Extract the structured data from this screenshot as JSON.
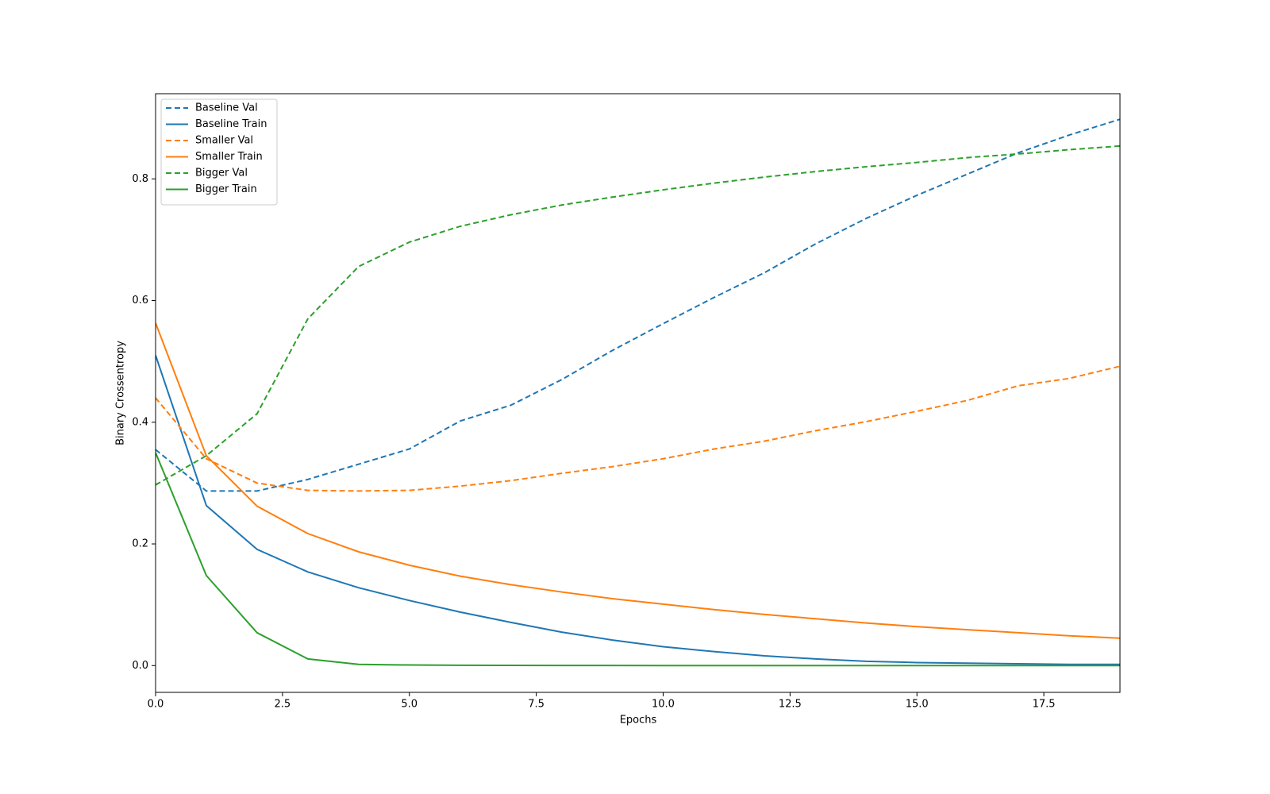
{
  "chart_data": {
    "type": "line",
    "x_label": "Epochs",
    "y_label": "Binary Crossentropy",
    "x": [
      0,
      1,
      2,
      3,
      4,
      5,
      6,
      7,
      8,
      9,
      10,
      11,
      12,
      13,
      14,
      15,
      16,
      17,
      18,
      19
    ],
    "xlim": [
      0,
      19
    ],
    "ylim": [
      -0.044,
      0.94
    ],
    "xticks": [
      {
        "value": 0,
        "label": "0.0"
      },
      2.5,
      {
        "value": 5,
        "label": "5.0"
      },
      7.5,
      {
        "value": 10,
        "label": "10.0"
      },
      12.5,
      {
        "value": 15,
        "label": "15.0"
      },
      17.5
    ],
    "yticks": [
      {
        "value": 0,
        "label": "0.0"
      },
      0.2,
      0.4,
      0.6,
      0.8
    ],
    "legend": "upper left",
    "grid": false,
    "series": [
      {
        "name": "Baseline Val",
        "color": "#1f77b4",
        "dashed": true,
        "values": [
          0.355,
          0.287,
          0.287,
          0.306,
          0.331,
          0.356,
          0.402,
          0.428,
          0.47,
          0.518,
          0.562,
          0.605,
          0.646,
          0.693,
          0.735,
          0.773,
          0.808,
          0.843,
          0.872,
          0.898
        ]
      },
      {
        "name": "Baseline Train",
        "color": "#1f77b4",
        "dashed": false,
        "values": [
          0.51,
          0.263,
          0.191,
          0.154,
          0.128,
          0.107,
          0.088,
          0.071,
          0.055,
          0.042,
          0.031,
          0.023,
          0.016,
          0.011,
          0.007,
          0.005,
          0.004,
          0.003,
          0.002,
          0.002
        ]
      },
      {
        "name": "Smaller Val",
        "color": "#ff7f0e",
        "dashed": true,
        "values": [
          0.44,
          0.34,
          0.3,
          0.288,
          0.287,
          0.288,
          0.295,
          0.304,
          0.316,
          0.327,
          0.34,
          0.356,
          0.369,
          0.386,
          0.401,
          0.418,
          0.436,
          0.46,
          0.472,
          0.492
        ]
      },
      {
        "name": "Smaller Train",
        "color": "#ff7f0e",
        "dashed": false,
        "values": [
          0.563,
          0.345,
          0.262,
          0.217,
          0.187,
          0.165,
          0.147,
          0.133,
          0.121,
          0.11,
          0.101,
          0.092,
          0.084,
          0.077,
          0.07,
          0.064,
          0.059,
          0.054,
          0.049,
          0.045
        ]
      },
      {
        "name": "Bigger Val",
        "color": "#2ca02c",
        "dashed": true,
        "values": [
          0.297,
          0.345,
          0.414,
          0.57,
          0.656,
          0.696,
          0.722,
          0.741,
          0.757,
          0.77,
          0.782,
          0.793,
          0.803,
          0.812,
          0.82,
          0.827,
          0.835,
          0.841,
          0.848,
          0.854
        ]
      },
      {
        "name": "Bigger Train",
        "color": "#2ca02c",
        "dashed": false,
        "values": [
          0.35,
          0.148,
          0.054,
          0.011,
          0.002,
          0.001,
          0.0005,
          0.0003,
          0.0002,
          0.0002,
          0.0001,
          0.0001,
          0.0001,
          0.0001,
          0.0001,
          0.0001,
          0.0001,
          0.0001,
          0.0001,
          0.0001
        ]
      }
    ]
  }
}
